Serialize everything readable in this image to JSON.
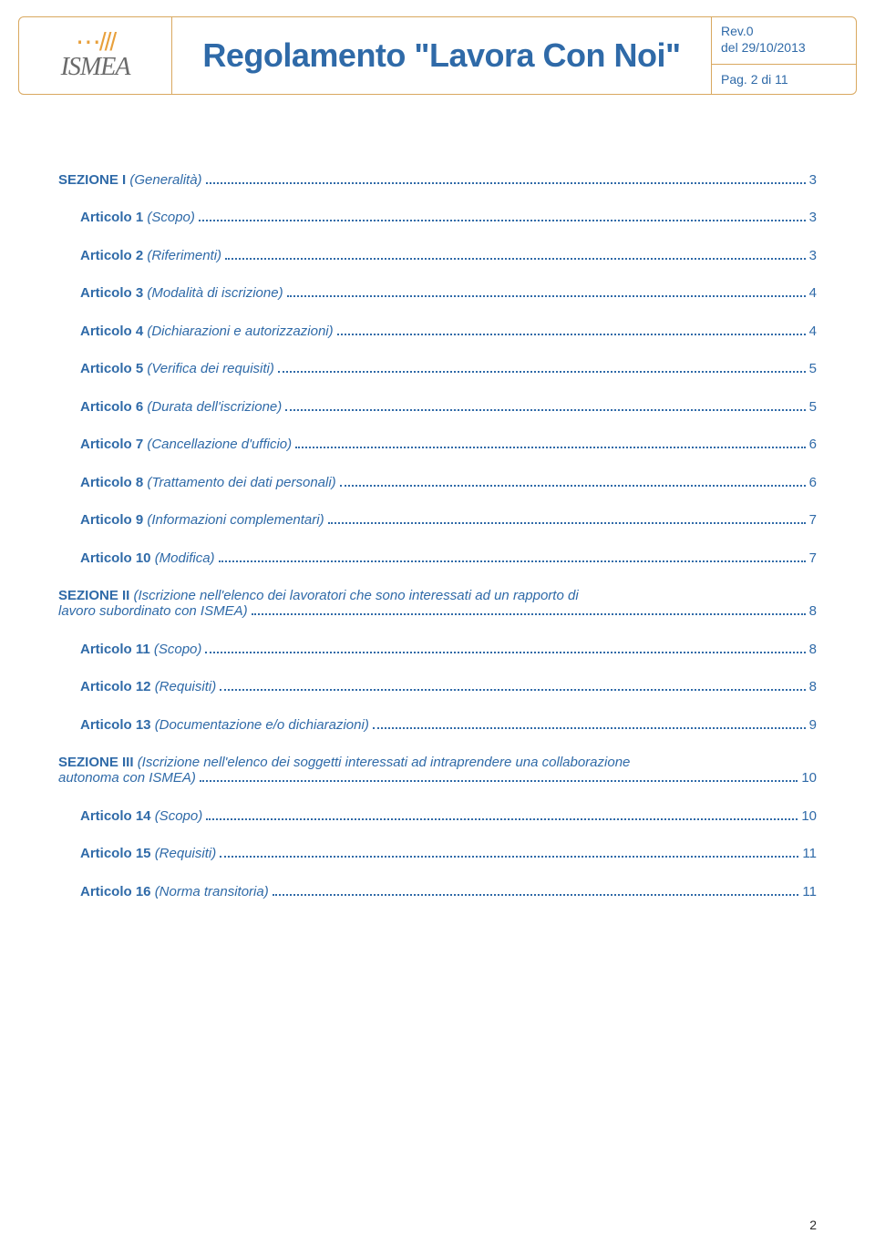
{
  "header": {
    "logo_name": "ISMEA",
    "title": "Regolamento \"Lavora Con Noi\"",
    "rev": "Rev.0",
    "date": "del 29/10/2013",
    "page_label": "Pag. 2 di 11"
  },
  "colors": {
    "accent": "#2f6aa8",
    "border": "#d9a85f",
    "logo_orange": "#e8a03c",
    "logo_gray": "#6b6b6b",
    "background": "#ffffff"
  },
  "toc": [
    {
      "bold": "SEZIONE I ",
      "italic": "(Generalità)",
      "page": "3",
      "indent": false
    },
    {
      "bold": "Articolo 1 ",
      "italic": "(Scopo)",
      "page": "3",
      "indent": true
    },
    {
      "bold": "Articolo 2 ",
      "italic": "(Riferimenti)",
      "page": "3",
      "indent": true
    },
    {
      "bold": "Articolo 3 ",
      "italic": "(Modalità di iscrizione)",
      "page": "4",
      "indent": true
    },
    {
      "bold": "Articolo 4 ",
      "italic": "(Dichiarazioni e autorizzazioni)",
      "page": "4",
      "indent": true
    },
    {
      "bold": "Articolo 5 ",
      "italic": "(Verifica dei requisiti)",
      "page": "5",
      "indent": true
    },
    {
      "bold": "Articolo 6 ",
      "italic": "(Durata dell'iscrizione)",
      "page": "5",
      "indent": true
    },
    {
      "bold": "Articolo 7 ",
      "italic": "(Cancellazione d'ufficio)",
      "page": "6",
      "indent": true
    },
    {
      "bold": "Articolo 8 ",
      "italic": "(Trattamento dei dati personali)",
      "page": "6",
      "indent": true
    },
    {
      "bold": "Articolo 9 ",
      "italic": "(Informazioni complementari)",
      "page": "7",
      "indent": true
    },
    {
      "bold": "Articolo 10 ",
      "italic": "(Modifica)",
      "page": "7",
      "indent": true
    },
    {
      "bold": "SEZIONE II ",
      "italic": "(Iscrizione nell'elenco dei lavoratori che sono interessati ad un rapporto di lavoro subordinato con ISMEA)",
      "page": "8",
      "indent": false,
      "multiline": true,
      "break_at": "lavoro subordinato con ISMEA)"
    },
    {
      "bold": "Articolo 11 ",
      "italic": "(Scopo)",
      "page": "8",
      "indent": true
    },
    {
      "bold": "Articolo 12 ",
      "italic": "(Requisiti)",
      "page": "8",
      "indent": true
    },
    {
      "bold": "Articolo 13 ",
      "italic": "(Documentazione e/o dichiarazioni)",
      "page": "9",
      "indent": true
    },
    {
      "bold": "SEZIONE III ",
      "italic": "(Iscrizione nell'elenco dei soggetti interessati ad intraprendere una collaborazione autonoma con ISMEA)",
      "page": "10",
      "indent": false,
      "multiline": true,
      "break_at": "autonoma con ISMEA)"
    },
    {
      "bold": "Articolo 14 ",
      "italic": "(Scopo)",
      "page": "10",
      "indent": true
    },
    {
      "bold": "Articolo 15 ",
      "italic": "(Requisiti)",
      "page": "11",
      "indent": true
    },
    {
      "bold": "Articolo 16 ",
      "italic": "(Norma transitoria)",
      "page": "11",
      "indent": true
    }
  ],
  "footer": {
    "page_number": "2"
  }
}
